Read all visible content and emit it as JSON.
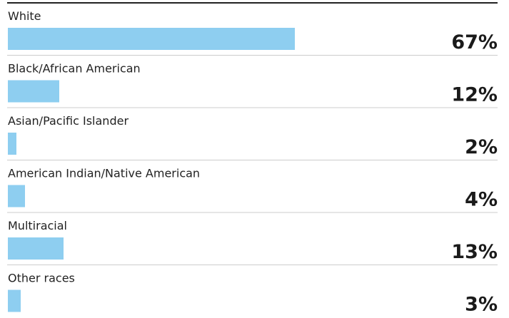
{
  "chart_data": {
    "type": "bar",
    "orientation": "horizontal",
    "categories": [
      "White",
      "Black/African American",
      "Asian/Pacific Islander",
      "American Indian/Native American",
      "Multiracial",
      "Other races"
    ],
    "values": [
      67,
      12,
      2,
      4,
      13,
      3
    ],
    "value_labels": [
      "67%",
      "12%",
      "2%",
      "4%",
      "13%",
      "3%"
    ],
    "color": "#8ecef0",
    "xlim": [
      0,
      100
    ]
  }
}
